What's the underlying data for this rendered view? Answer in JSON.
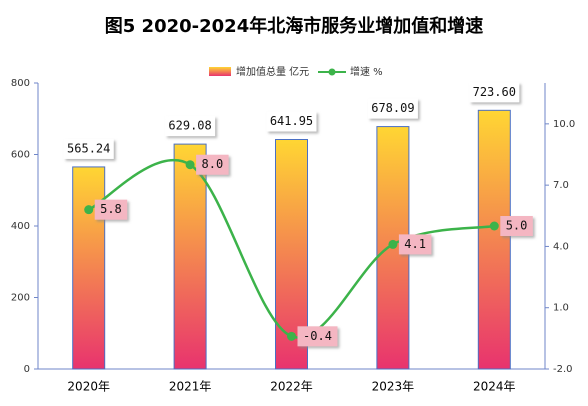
{
  "chart_data": {
    "type": "bar_line",
    "title": "图5 2020-2024年北海市服务业增加值和增速",
    "categories": [
      "2020年",
      "2021年",
      "2022年",
      "2023年",
      "2024年"
    ],
    "series": [
      {
        "name": "增加值总量 亿元",
        "type": "bar",
        "gradient": [
          "#ffd633",
          "#e8336e"
        ],
        "color": "#4a6fc4",
        "values": [
          565.24,
          629.08,
          641.95,
          678.09,
          723.6
        ],
        "value_labels": [
          "565.24",
          "629.08",
          "641.95",
          "678.09",
          "723.60"
        ]
      },
      {
        "name": "增速 %",
        "type": "line",
        "axis": "y2",
        "color": "#3cb34a",
        "label_color": "#f4b6c2",
        "values": [
          5.8,
          8.0,
          -0.4,
          4.1,
          5.0
        ],
        "value_labels": [
          "5.8",
          "8.0",
          "-0.4",
          "4.1",
          "5.0"
        ]
      }
    ],
    "ylim": [
      0,
      800
    ],
    "yticks": [
      0,
      200,
      400,
      600,
      800
    ],
    "y2lim": [
      -2,
      12
    ],
    "y2ticks": [
      {
        "value": -2,
        "label": "-2.0"
      },
      {
        "value": 1,
        "label": "1.0"
      },
      {
        "value": 4,
        "label": "4.0"
      },
      {
        "value": 7,
        "label": "7.0"
      },
      {
        "value": 10,
        "label": "10.0"
      }
    ]
  }
}
